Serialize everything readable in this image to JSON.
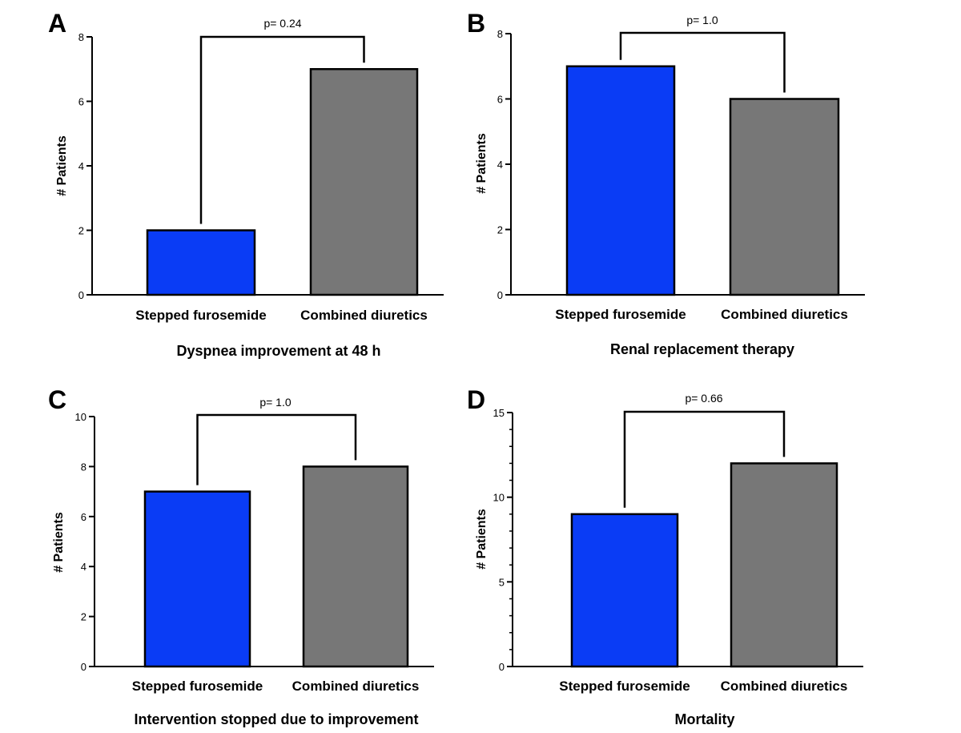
{
  "colors": {
    "stepped": "#0a3cf5",
    "combined": "#777777",
    "outline": "#000000"
  },
  "chart_data": [
    {
      "type": "bar",
      "panel_letter": "A",
      "title": "Dyspnea improvement at 48 h",
      "xlabel": "Dyspnea improvement at 48 h",
      "ylabel": "# Patients",
      "categories": [
        "Stepped furosemide",
        "Combined diuretics"
      ],
      "values": [
        2,
        7
      ],
      "ylim": [
        0,
        8
      ],
      "yticks": [
        0,
        2,
        4,
        6,
        8
      ],
      "minor_ticks": false,
      "p_value_label": "p= 0.24",
      "grid": false
    },
    {
      "type": "bar",
      "panel_letter": "B",
      "title": "Renal replacement therapy",
      "xlabel": "Renal replacement therapy",
      "ylabel": "# Patients",
      "categories": [
        "Stepped furosemide",
        "Combined diuretics"
      ],
      "values": [
        7,
        6
      ],
      "ylim": [
        0,
        8
      ],
      "yticks": [
        0,
        2,
        4,
        6,
        8
      ],
      "minor_ticks": false,
      "p_value_label": "p= 1.0",
      "grid": false
    },
    {
      "type": "bar",
      "panel_letter": "C",
      "title": "Intervention stopped due to improvement",
      "xlabel": "Intervention stopped due to improvement",
      "ylabel": "# Patients",
      "categories": [
        "Stepped furosemide",
        "Combined diuretics"
      ],
      "values": [
        7,
        8
      ],
      "ylim": [
        0,
        10
      ],
      "yticks": [
        0,
        2,
        4,
        6,
        8,
        10
      ],
      "minor_ticks": false,
      "p_value_label": "p= 1.0",
      "grid": false
    },
    {
      "type": "bar",
      "panel_letter": "D",
      "title": "Mortality",
      "xlabel": "Mortality",
      "ylabel": "# Patients",
      "categories": [
        "Stepped furosemide",
        "Combined diuretics"
      ],
      "values": [
        9,
        12
      ],
      "ylim": [
        0,
        15
      ],
      "yticks": [
        0,
        5,
        10,
        15
      ],
      "minor_ticks": true,
      "p_value_label": "p= 0.66",
      "grid": false
    }
  ]
}
